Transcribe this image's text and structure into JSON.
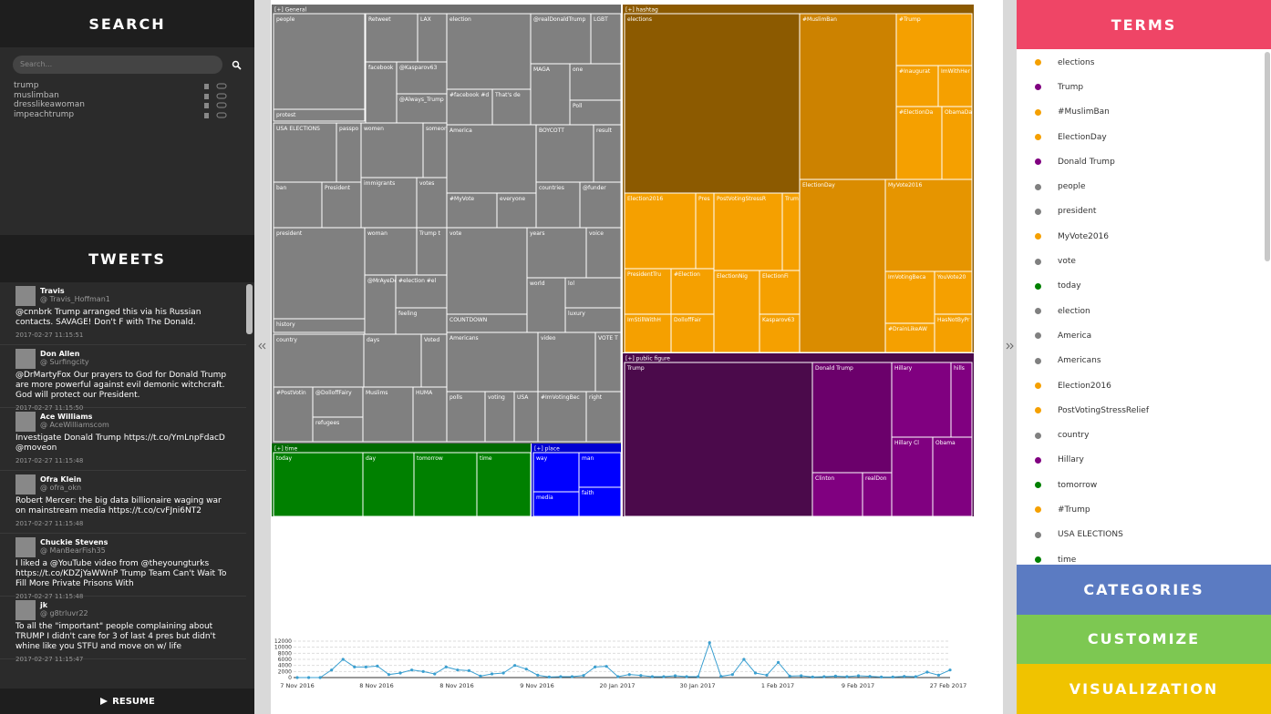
{
  "search": {
    "title": "SEARCH",
    "placeholder": "Search...",
    "terms": [
      "trump",
      "muslimban",
      "dresslikeawoman",
      "impeachtrump"
    ]
  },
  "tweets": {
    "title": "TWEETS",
    "resume": "RESUME",
    "items": [
      {
        "name": "Travis",
        "handle": "@ Travis_Hoffman1",
        "text": "@cnnbrk Trump arranged this via his Russian contacts. SAVAGE! Don't F with The Donald.",
        "time": "2017-02-27 11:15:51"
      },
      {
        "name": "Don Allen",
        "handle": "@ Surfingcity",
        "text": "@DrMartyFox Our prayers to God for Donald Trump are more powerful against evil demonic witchcraft. God will protect our President.",
        "time": "2017-02-27 11:15:50"
      },
      {
        "name": "Ace Williams",
        "handle": "@ AceWilliamscom",
        "text": "Investigate Donald Trump https://t.co/YmLnpFdacD @moveon",
        "time": "2017-02-27 11:15:48"
      },
      {
        "name": "Ofra Klein",
        "handle": "@ ofra_okn",
        "text": "Robert Mercer: the big data billionaire waging war on mainstream media https://t.co/cvFJni6NT2",
        "time": "2017-02-27 11:15:48"
      },
      {
        "name": "Chuckie Stevens",
        "handle": "@ ManBearFish35",
        "text": "I liked a @YouTube video from @theyoungturks https://t.co/KDZjYaWWnP Trump Team Can't Wait To Fill More Private Prisons With",
        "time": "2017-02-27 11:15:48"
      },
      {
        "name": "jk",
        "handle": "@ g8trluvr22",
        "text": "To all the \"important\" people complaining about TRUMP I didn't care for 3 of last 4 pres but didn't whine like you STFU and move on w/ life",
        "time": "2017-02-27 11:15:47"
      }
    ]
  },
  "treemap": {
    "groups": [
      {
        "title": "[+] General",
        "color": "#808080",
        "header": "#6e6e6e",
        "cells": [
          {
            "label": "people"
          },
          {
            "label": "protest"
          },
          {
            "label": "Retweet"
          },
          {
            "label": "LAX"
          },
          {
            "label": "facebook"
          },
          {
            "label": "@Kasparov63"
          },
          {
            "label": "@Always_Trump"
          },
          {
            "label": "election"
          },
          {
            "label": "@realDonaldTrump"
          },
          {
            "label": "LGBT"
          },
          {
            "label": "MAGA"
          },
          {
            "label": "one"
          },
          {
            "label": "Poll"
          },
          {
            "label": "#facebook #d"
          },
          {
            "label": "That's de"
          },
          {
            "label": "USA ELECTIONS"
          },
          {
            "label": "passpo"
          },
          {
            "label": "women"
          },
          {
            "label": "someon"
          },
          {
            "label": "ban"
          },
          {
            "label": "President"
          },
          {
            "label": "immigrants"
          },
          {
            "label": "votes"
          },
          {
            "label": "America"
          },
          {
            "label": "BOYCOTT"
          },
          {
            "label": "result"
          },
          {
            "label": "#MyVote"
          },
          {
            "label": "everyone"
          },
          {
            "label": "countries"
          },
          {
            "label": "@funder"
          },
          {
            "label": "president"
          },
          {
            "label": "history"
          },
          {
            "label": "woman"
          },
          {
            "label": "Trump t"
          },
          {
            "label": "@MrAyeDe"
          },
          {
            "label": "#election #el"
          },
          {
            "label": "feeling"
          },
          {
            "label": "vote"
          },
          {
            "label": "COUNTDOWN"
          },
          {
            "label": "years"
          },
          {
            "label": "voice"
          },
          {
            "label": "world"
          },
          {
            "label": "lol"
          },
          {
            "label": "luxury"
          },
          {
            "label": "country"
          },
          {
            "label": "days"
          },
          {
            "label": "Voted"
          },
          {
            "label": "#PostVotin"
          },
          {
            "label": "@DolloffFairy"
          },
          {
            "label": "refugees"
          },
          {
            "label": "Muslims"
          },
          {
            "label": "HUMA"
          },
          {
            "label": "Americans"
          },
          {
            "label": "video"
          },
          {
            "label": "VOTE T"
          },
          {
            "label": "polls"
          },
          {
            "label": "voting"
          },
          {
            "label": "USA"
          },
          {
            "label": "#ImVotingBec"
          },
          {
            "label": "right"
          }
        ]
      },
      {
        "title": "[+] hashtag",
        "color": "#f5a000",
        "header": "#8c5a00",
        "cells": [
          {
            "label": "elections",
            "color": "#8c5a00"
          },
          {
            "label": "#MuslimBan",
            "color": "#cc8200"
          },
          {
            "label": "#Trump"
          },
          {
            "label": "#Inaugurat"
          },
          {
            "label": "ImWithHer"
          },
          {
            "label": "#ElectionDa"
          },
          {
            "label": "ObamaDa"
          },
          {
            "label": "Election2016"
          },
          {
            "label": "Pres"
          },
          {
            "label": "PostVotingStressR"
          },
          {
            "label": "Trum"
          },
          {
            "label": "ElectionDay",
            "color": "#da8c00"
          },
          {
            "label": "MyVote2016",
            "color": "#e69500"
          },
          {
            "label": "PresidentTru"
          },
          {
            "label": "#Election"
          },
          {
            "label": "DolloffFair"
          },
          {
            "label": "ImStillWithH"
          },
          {
            "label": "ElectionNig"
          },
          {
            "label": "ElectionFi"
          },
          {
            "label": "Kasparov63"
          },
          {
            "label": "ImVotingBeca"
          },
          {
            "label": "YouVote20"
          },
          {
            "label": "#DrainLikeAW"
          },
          {
            "label": "HasNotByPr"
          }
        ]
      },
      {
        "title": "[+] public figure",
        "color": "#800080",
        "header": "#4b0a4b",
        "cells": [
          {
            "label": "Trump",
            "color": "#4b0a4b"
          },
          {
            "label": "Donald Trump",
            "color": "#6b006b"
          },
          {
            "label": "Hillary"
          },
          {
            "label": "hills"
          },
          {
            "label": "Clinton"
          },
          {
            "label": "realDon"
          },
          {
            "label": "Hillary Cl"
          },
          {
            "label": "Obama"
          }
        ]
      },
      {
        "title": "[+] time",
        "color": "#008000",
        "header": "#006a00",
        "cells": [
          {
            "label": "today"
          },
          {
            "label": "day"
          },
          {
            "label": "tomorrow"
          },
          {
            "label": "time"
          }
        ]
      },
      {
        "title": "[+] place",
        "color": "#0000ff",
        "header": "#0000d0",
        "cells": [
          {
            "label": "way"
          },
          {
            "label": "man"
          },
          {
            "label": "media"
          },
          {
            "label": "faith"
          }
        ]
      }
    ]
  },
  "timeline": {
    "color": "#3a9fd0",
    "ylim": [
      0,
      12000
    ],
    "yticks": [
      0,
      2000,
      4000,
      6000,
      8000,
      10000,
      12000
    ],
    "xtick_labels": [
      "7 Nov 2016",
      "8 Nov 2016",
      "8 Nov 2016",
      "9 Nov 2016",
      "20 Jan 2017",
      "30 Jan 2017",
      "1 Feb 2017",
      "9 Feb 2017",
      "27 Feb 2017"
    ],
    "values": [
      0,
      0,
      0,
      2500,
      6000,
      3500,
      3500,
      3800,
      1000,
      1500,
      2500,
      2000,
      1200,
      3500,
      2500,
      2300,
      500,
      1200,
      1500,
      4000,
      2800,
      800,
      200,
      300,
      300,
      700,
      3500,
      3700,
      300,
      1000,
      700,
      300,
      300,
      600,
      300,
      300,
      11500,
      400,
      1000,
      6000,
      1500,
      800,
      5000,
      500,
      600,
      200,
      300,
      500,
      300,
      600,
      400,
      200,
      200,
      400,
      300,
      1800,
      800,
      2500
    ]
  },
  "terms": {
    "title": "TERMS",
    "items": [
      {
        "label": "elections",
        "color": "#f5a000"
      },
      {
        "label": "Trump",
        "color": "#800080"
      },
      {
        "label": "#MuslimBan",
        "color": "#f5a000"
      },
      {
        "label": "ElectionDay",
        "color": "#f5a000"
      },
      {
        "label": "Donald Trump",
        "color": "#800080"
      },
      {
        "label": "people",
        "color": "#808080"
      },
      {
        "label": "president",
        "color": "#808080"
      },
      {
        "label": "MyVote2016",
        "color": "#f5a000"
      },
      {
        "label": "vote",
        "color": "#808080"
      },
      {
        "label": "today",
        "color": "#008000"
      },
      {
        "label": "election",
        "color": "#808080"
      },
      {
        "label": "America",
        "color": "#808080"
      },
      {
        "label": "Americans",
        "color": "#808080"
      },
      {
        "label": "Election2016",
        "color": "#f5a000"
      },
      {
        "label": "PostVotingStressRelief",
        "color": "#f5a000"
      },
      {
        "label": "country",
        "color": "#808080"
      },
      {
        "label": "Hillary",
        "color": "#800080"
      },
      {
        "label": "tomorrow",
        "color": "#008000"
      },
      {
        "label": "#Trump",
        "color": "#f5a000"
      },
      {
        "label": "USA ELECTIONS",
        "color": "#808080"
      },
      {
        "label": "time",
        "color": "#008000"
      }
    ]
  },
  "menu": [
    {
      "label": "CATEGORIES",
      "color": "#5b7bc2"
    },
    {
      "label": "CUSTOMIZE",
      "color": "#7dc852"
    },
    {
      "label": "VISUALIZATION",
      "color": "#f0c300"
    }
  ]
}
